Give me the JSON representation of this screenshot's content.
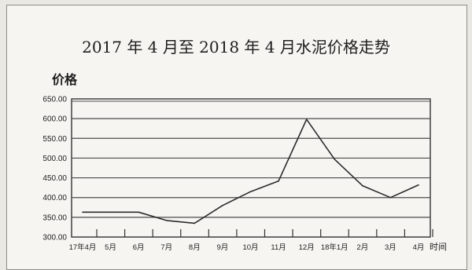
{
  "chart_data": {
    "type": "line",
    "title": "2017 年 4 月至 2018 年 4 月水泥价格走势",
    "ylabel": "价格",
    "xlabel": "时间",
    "ylim": [
      300,
      650
    ],
    "yticks": [
      "300.00",
      "350.00",
      "400.00",
      "450.00",
      "500.00",
      "550.00",
      "600.00",
      "650.00"
    ],
    "categories": [
      "17年4月",
      "5月",
      "6月",
      "7月",
      "8月",
      "9月",
      "10月",
      "11月",
      "12月",
      "18年1月",
      "2月",
      "3月",
      "4月"
    ],
    "series": [
      {
        "values": [
          363,
          363,
          363,
          342,
          335,
          380,
          415,
          442,
          598,
          497,
          430,
          400,
          432
        ]
      }
    ],
    "grid": true,
    "legend": "none"
  },
  "colors": {
    "line": "#2b2b2b",
    "grid": "#4a4a4a",
    "background": "#f6f5f1"
  }
}
